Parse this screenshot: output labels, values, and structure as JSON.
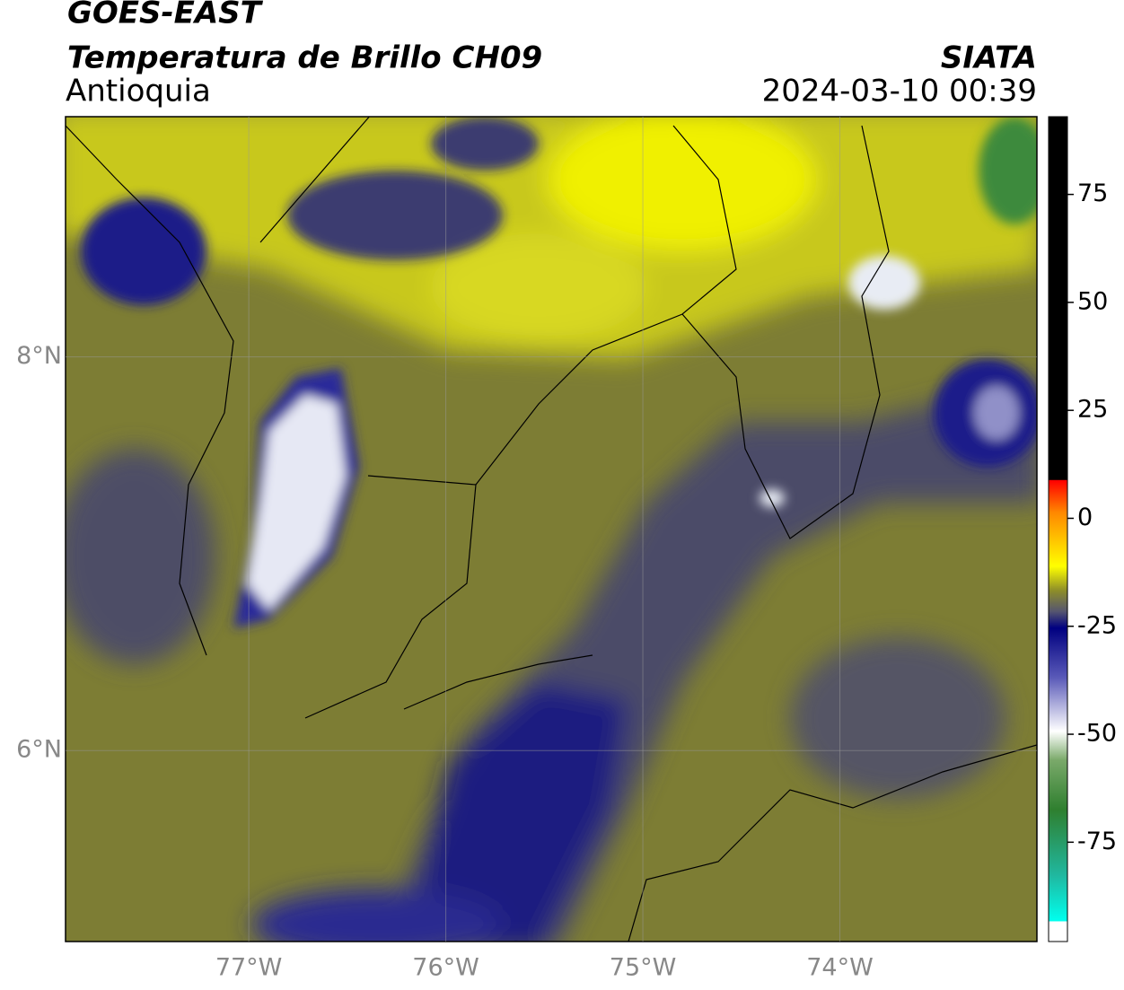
{
  "header": {
    "title": "GOES-EAST",
    "subtitle": "Temperatura de Brillo CH09",
    "region": "Antioquia",
    "source": "SIATA",
    "datetime": "2024-03-10 00:39"
  },
  "map": {
    "xlim": [
      -77.93,
      -73.0
    ],
    "ylim": [
      5.03,
      9.22
    ],
    "xticks": [
      {
        "value": -77,
        "label": "77°W"
      },
      {
        "value": -76,
        "label": "76°W"
      },
      {
        "value": -75,
        "label": "75°W"
      },
      {
        "value": -74,
        "label": "74°W"
      }
    ],
    "yticks": [
      {
        "value": 6,
        "label": "6°N"
      },
      {
        "value": 8,
        "label": "8°N"
      }
    ],
    "grid": true
  },
  "colorbar": {
    "ylim": [
      -98,
      93
    ],
    "yticks": [
      -75,
      -50,
      -25,
      0,
      25,
      50,
      75
    ]
  }
}
